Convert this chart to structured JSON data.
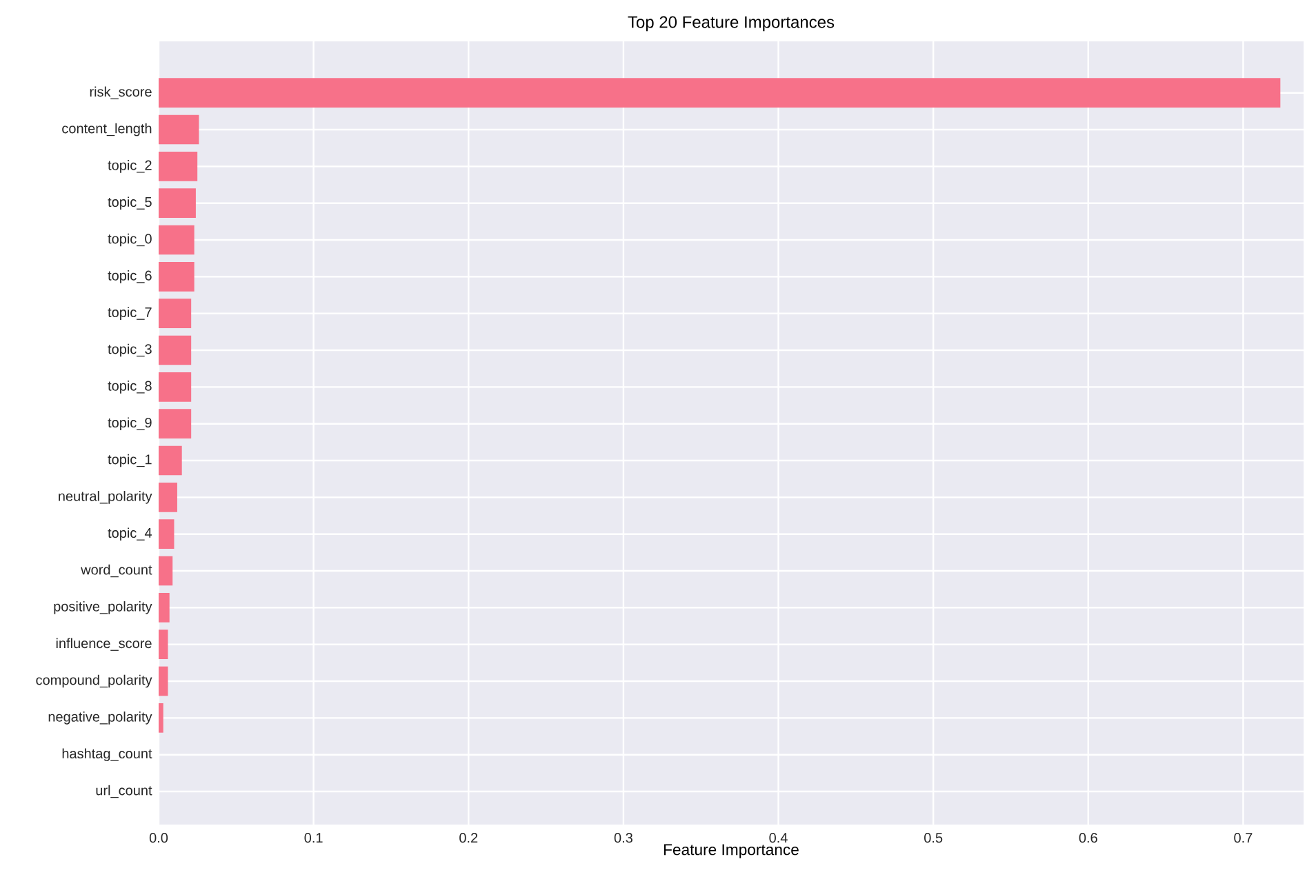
{
  "chart_data": {
    "type": "bar",
    "orientation": "horizontal",
    "title": "Top 20 Feature Importances",
    "xlabel": "Feature Importance",
    "categories": [
      "risk_score",
      "content_length",
      "topic_2",
      "topic_5",
      "topic_0",
      "topic_6",
      "topic_7",
      "topic_3",
      "topic_8",
      "topic_9",
      "topic_1",
      "neutral_polarity",
      "topic_4",
      "word_count",
      "positive_polarity",
      "influence_score",
      "compound_polarity",
      "negative_polarity",
      "hashtag_count",
      "url_count"
    ],
    "values": [
      0.724,
      0.026,
      0.025,
      0.024,
      0.023,
      0.023,
      0.021,
      0.021,
      0.021,
      0.021,
      0.015,
      0.012,
      0.01,
      0.009,
      0.007,
      0.006,
      0.006,
      0.003,
      0,
      0
    ],
    "color": "#f77189",
    "xlim": [
      0,
      0.739
    ],
    "xticks": [
      {
        "value": 0,
        "label": "0.0"
      },
      0.1,
      0.2,
      0.3,
      0.4,
      0.5,
      0.6,
      0.7
    ],
    "grid": true
  }
}
